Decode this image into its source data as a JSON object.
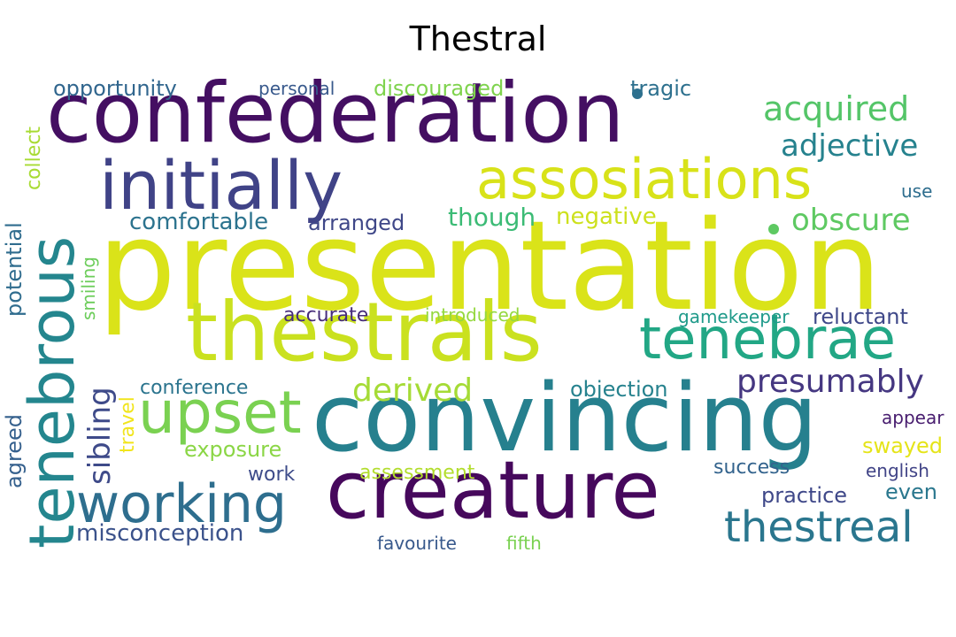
{
  "title": "Thestral",
  "words": [
    {
      "text": "presentation",
      "color": "#dae319"
    },
    {
      "text": "confederation",
      "color": "#440f62"
    },
    {
      "text": "convincing",
      "color": "#26808e"
    },
    {
      "text": "creature",
      "color": "#46085c"
    },
    {
      "text": "thestrals",
      "color": "#cae11f"
    },
    {
      "text": "initially",
      "color": "#404387"
    },
    {
      "text": "assosiations",
      "color": "#d8e219"
    },
    {
      "text": "tenebrae",
      "color": "#22a785"
    },
    {
      "text": "tenebrous",
      "color": "#24868e"
    },
    {
      "text": "working",
      "color": "#2e6e8e"
    },
    {
      "text": "upset",
      "color": "#7ad151"
    },
    {
      "text": "thestreal",
      "color": "#2a768e"
    },
    {
      "text": "acquired",
      "color": "#54c568"
    },
    {
      "text": "adjective",
      "color": "#26828e"
    },
    {
      "text": "obscure",
      "color": "#5ec962"
    },
    {
      "text": "presumably",
      "color": "#453781"
    },
    {
      "text": "derived",
      "color": "#a5db36"
    },
    {
      "text": "sibling",
      "color": "#3e4a89"
    },
    {
      "text": "misconception",
      "color": "#3b528b"
    },
    {
      "text": "comfortable",
      "color": "#2c738e"
    },
    {
      "text": "arranged",
      "color": "#3f4788"
    },
    {
      "text": "though",
      "color": "#3bbb75"
    },
    {
      "text": "negative",
      "color": "#cde11d"
    },
    {
      "text": "opportunity",
      "color": "#31668e"
    },
    {
      "text": "personal",
      "color": "#38598c"
    },
    {
      "text": "discouraged",
      "color": "#7fd34e"
    },
    {
      "text": "tragic",
      "color": "#2d708e"
    },
    {
      "text": "use",
      "color": "#2e6d8e"
    },
    {
      "text": "collect",
      "color": "#a8db34"
    },
    {
      "text": "potential",
      "color": "#2f6c8e"
    },
    {
      "text": "smiling",
      "color": "#6ccd5a"
    },
    {
      "text": "accurate",
      "color": "#472d7b"
    },
    {
      "text": "introduced",
      "color": "#95d840"
    },
    {
      "text": "gamekeeper",
      "color": "#1f9a8a"
    },
    {
      "text": "reluctant",
      "color": "#3f4889"
    },
    {
      "text": "conference",
      "color": "#2b748e"
    },
    {
      "text": "objection",
      "color": "#26828e"
    },
    {
      "text": "travel",
      "color": "#f1e51d"
    },
    {
      "text": "agreed",
      "color": "#35608d"
    },
    {
      "text": "exposure",
      "color": "#8bd646"
    },
    {
      "text": "appear",
      "color": "#481d6f"
    },
    {
      "text": "swayed",
      "color": "#e5e419"
    },
    {
      "text": "assessment",
      "color": "#b2dd2d"
    },
    {
      "text": "work",
      "color": "#3e4c8a"
    },
    {
      "text": "success",
      "color": "#33638d"
    },
    {
      "text": "english",
      "color": "#414487"
    },
    {
      "text": "even",
      "color": "#2a778e"
    },
    {
      "text": "practice",
      "color": "#3f4889"
    },
    {
      "text": "favourite",
      "color": "#38598c"
    },
    {
      "text": "fifth",
      "color": "#7ad151"
    }
  ]
}
